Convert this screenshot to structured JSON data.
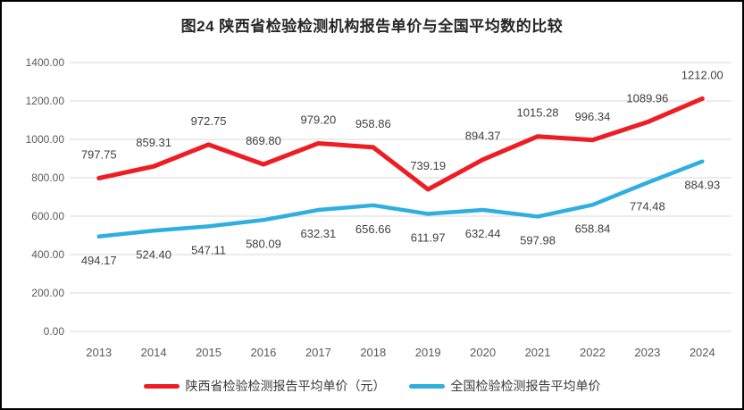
{
  "title": "图24 陕西省检验检测机构报告单价与全国平均数的比较",
  "chart_data": {
    "type": "line",
    "categories": [
      "2013",
      "2014",
      "2015",
      "2016",
      "2017",
      "2018",
      "2019",
      "2020",
      "2021",
      "2022",
      "2023",
      "2024"
    ],
    "series": [
      {
        "name": "陕西省检验检测报告平均单价（元）",
        "color": "#EE1D24",
        "values": [
          797.75,
          859.31,
          972.75,
          869.8,
          979.2,
          958.86,
          739.19,
          894.37,
          1015.28,
          996.34,
          1089.96,
          1212.0
        ],
        "labels": [
          "797.75",
          "859.31",
          "972.75",
          "869.80",
          "979.20",
          "958.86",
          "739.19",
          "894.37",
          "1015.28",
          "996.34",
          "1089.96",
          "1212.00"
        ]
      },
      {
        "name": "全国检验检测报告平均单价",
        "color": "#2FAFE0",
        "values": [
          494.17,
          524.4,
          547.11,
          580.09,
          632.31,
          656.66,
          611.97,
          632.44,
          597.98,
          658.84,
          774.48,
          884.93
        ],
        "labels": [
          "494.17",
          "524.40",
          "547.11",
          "580.09",
          "632.31",
          "656.66",
          "611.97",
          "632.44",
          "597.98",
          "658.84",
          "774.48",
          "884.93"
        ]
      }
    ],
    "ylim": [
      0,
      1400
    ],
    "yticks": [
      "0.00",
      "200.00",
      "400.00",
      "600.00",
      "800.00",
      "1000.00",
      "1200.00",
      "1400.00"
    ],
    "grid": true,
    "legend_position": "bottom"
  },
  "colors": {
    "grid": "#D9D9D9",
    "axis_text": "#595959",
    "data_label": "#404040",
    "title_text": "#262626",
    "border": "#000000"
  }
}
